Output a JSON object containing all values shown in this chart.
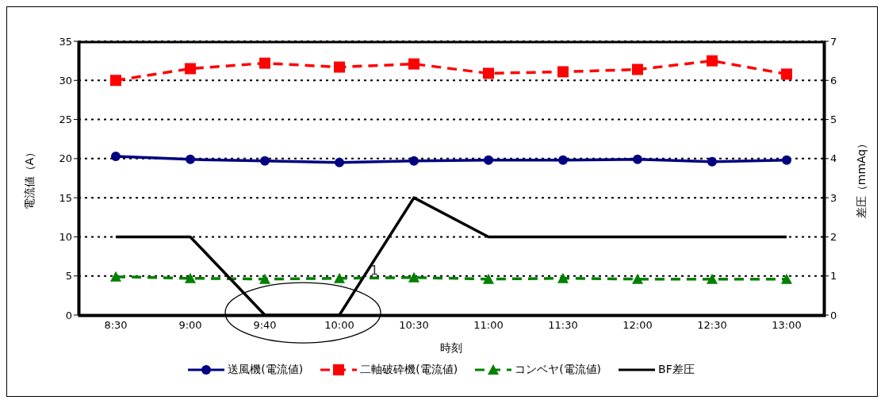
{
  "chart_data": {
    "type": "line",
    "xlabel": "時刻",
    "ylabel": "電流値（A）",
    "y2label": "差圧（mmAq）",
    "categories": [
      "8:30",
      "9:00",
      "9:40",
      "10:00",
      "10:30",
      "11:00",
      "11:30",
      "12:00",
      "12:30",
      "13:00"
    ],
    "series": [
      {
        "name": "送風機(電流値)",
        "color": "#000080",
        "marker": "circle",
        "line_style": "solid",
        "values": [
          20.3,
          19.9,
          19.7,
          19.5,
          19.7,
          19.8,
          19.8,
          19.9,
          19.6,
          19.8
        ]
      },
      {
        "name": "二軸破砕機(電流値)",
        "color": "#ff0000",
        "marker": "square",
        "line_style": "dashed",
        "values": [
          30.0,
          31.5,
          32.2,
          31.7,
          32.1,
          30.9,
          31.1,
          31.4,
          32.5,
          30.8
        ]
      },
      {
        "name": "コンベヤ(電流値)",
        "color": "#008000",
        "marker": "triangle",
        "line_style": "dashed",
        "values": [
          4.9,
          4.7,
          4.6,
          4.7,
          4.8,
          4.6,
          4.7,
          4.6,
          4.6,
          4.6
        ]
      },
      {
        "name": "BF差圧",
        "color": "#000000",
        "marker": "none",
        "line_style": "solid",
        "axis": "y2",
        "values": [
          2,
          2,
          0,
          0,
          3,
          2,
          2,
          2,
          2,
          2
        ]
      }
    ],
    "ylim": [
      0,
      35
    ],
    "yticks": [
      0,
      5,
      10,
      15,
      20,
      25,
      30,
      35
    ],
    "y2lim": [
      0,
      7
    ],
    "y2ticks": [
      0,
      1,
      2,
      3,
      4,
      5,
      6,
      7
    ],
    "grid": "y",
    "legend": "bottom",
    "annotations": [
      "1"
    ]
  }
}
